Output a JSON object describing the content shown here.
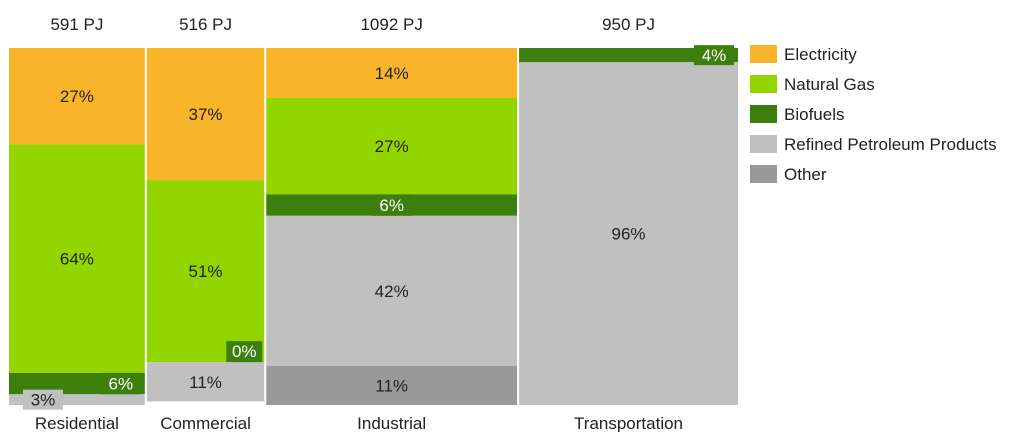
{
  "chart_data": {
    "type": "bar",
    "subtype": "marimekko (variable-width 100% stacked)",
    "unit": "PJ",
    "categories": [
      {
        "name": "Residential",
        "total": 591,
        "total_label": "591 PJ"
      },
      {
        "name": "Commercial",
        "total": 516,
        "total_label": "516 PJ"
      },
      {
        "name": "Industrial",
        "total": 1092,
        "total_label": "1092 PJ"
      },
      {
        "name": "Transportation",
        "total": 950,
        "total_label": "950 PJ"
      }
    ],
    "series": [
      {
        "name": "Electricity",
        "color": "#f9b52a",
        "values": [
          27,
          37,
          14,
          0
        ]
      },
      {
        "name": "Natural Gas",
        "color": "#93d500",
        "values": [
          64,
          51,
          27,
          0
        ]
      },
      {
        "name": "Biofuels",
        "color": "#3d7f0d",
        "values": [
          6,
          0,
          6,
          4
        ]
      },
      {
        "name": "Refined Petroleum Products",
        "color": "#c0c0c0",
        "values": [
          3,
          11,
          42,
          96
        ]
      },
      {
        "name": "Other",
        "color": "#999999",
        "values": [
          0,
          0,
          11,
          0
        ]
      }
    ],
    "data_labels": [
      [
        "27%",
        "64%",
        "6%",
        "3%",
        null
      ],
      [
        "37%",
        "51%",
        "0%",
        "11%",
        null
      ],
      [
        "14%",
        "27%",
        "6%",
        "42%",
        "11%"
      ],
      [
        null,
        null,
        "4%",
        "96%",
        null
      ]
    ],
    "legend_position": "right",
    "grid": false
  }
}
